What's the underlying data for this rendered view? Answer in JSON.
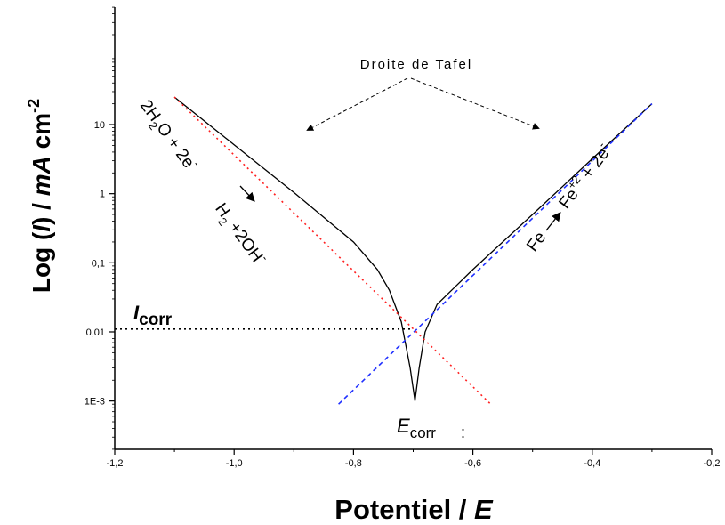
{
  "chart_data": {
    "type": "line",
    "xlabel": {
      "main": "Potentiel",
      "slash": " / ",
      "unit": "E"
    },
    "ylabel": {
      "main": "Log (",
      "var": "I",
      "rest": ") / ",
      "unit": "mA",
      "cm": " cm",
      "exp": "-2"
    },
    "xlim": [
      -1.2,
      -0.2
    ],
    "ylim_log10": [
      -3.7,
      2.7
    ],
    "y_scale": "log",
    "x_ticks": [
      -1.2,
      -1.0,
      -0.8,
      -0.6,
      -0.4,
      -0.2
    ],
    "x_tick_labels": [
      "-1,2",
      "-1,0",
      "-0,8",
      "-0,6",
      "-0,4",
      "-0,2"
    ],
    "y_ticks": [
      0.001,
      0.01,
      0.1,
      1,
      10
    ],
    "y_tick_labels": [
      "1E-3",
      "0,01",
      "0,1",
      "1",
      "10"
    ],
    "series": [
      {
        "style": "solid",
        "color": "#000000",
        "points": [
          [
            -1.1,
            25
          ],
          [
            -1.0,
            5.1
          ],
          [
            -0.9,
            1.04
          ],
          [
            -0.8,
            0.2
          ],
          [
            -0.76,
            0.08
          ],
          [
            -0.74,
            0.04
          ],
          [
            -0.72,
            0.014
          ],
          [
            -0.705,
            0.003
          ],
          [
            -0.697,
            0.001
          ],
          [
            -0.69,
            0.003
          ],
          [
            -0.68,
            0.01
          ],
          [
            -0.66,
            0.025
          ],
          [
            -0.6,
            0.08
          ],
          [
            -0.5,
            0.5
          ],
          [
            -0.4,
            3.2
          ],
          [
            -0.3,
            20
          ]
        ]
      },
      {
        "style": "dotted",
        "color": "#ff2020",
        "points": [
          [
            -1.1,
            25
          ],
          [
            -0.57,
            0.0009
          ]
        ]
      },
      {
        "style": "dashed",
        "color": "#2030ff",
        "points": [
          [
            -0.825,
            0.0009
          ],
          [
            -0.3,
            20
          ]
        ]
      },
      {
        "style": "dotted",
        "color": "#000000",
        "points": [
          [
            -1.2,
            0.011
          ],
          [
            -0.7,
            0.011
          ]
        ]
      }
    ],
    "annotations": {
      "tafel": "Droite de Tafel",
      "icorr": {
        "main": "I",
        "sub": "corr"
      },
      "ecorr": {
        "main": "E",
        "sub": "corr"
      },
      "ecorr_dot": ":",
      "cathodic": {
        "a": "2H",
        "b": "2",
        "c": "O + 2e",
        "d": "-",
        "e": "H",
        "f": "2",
        "g": " +2OH",
        "h": "-"
      },
      "anodic": {
        "a": "Fe",
        "b": "Fe",
        "c": "+2",
        "d": " + 2e",
        "e": "-"
      }
    }
  }
}
